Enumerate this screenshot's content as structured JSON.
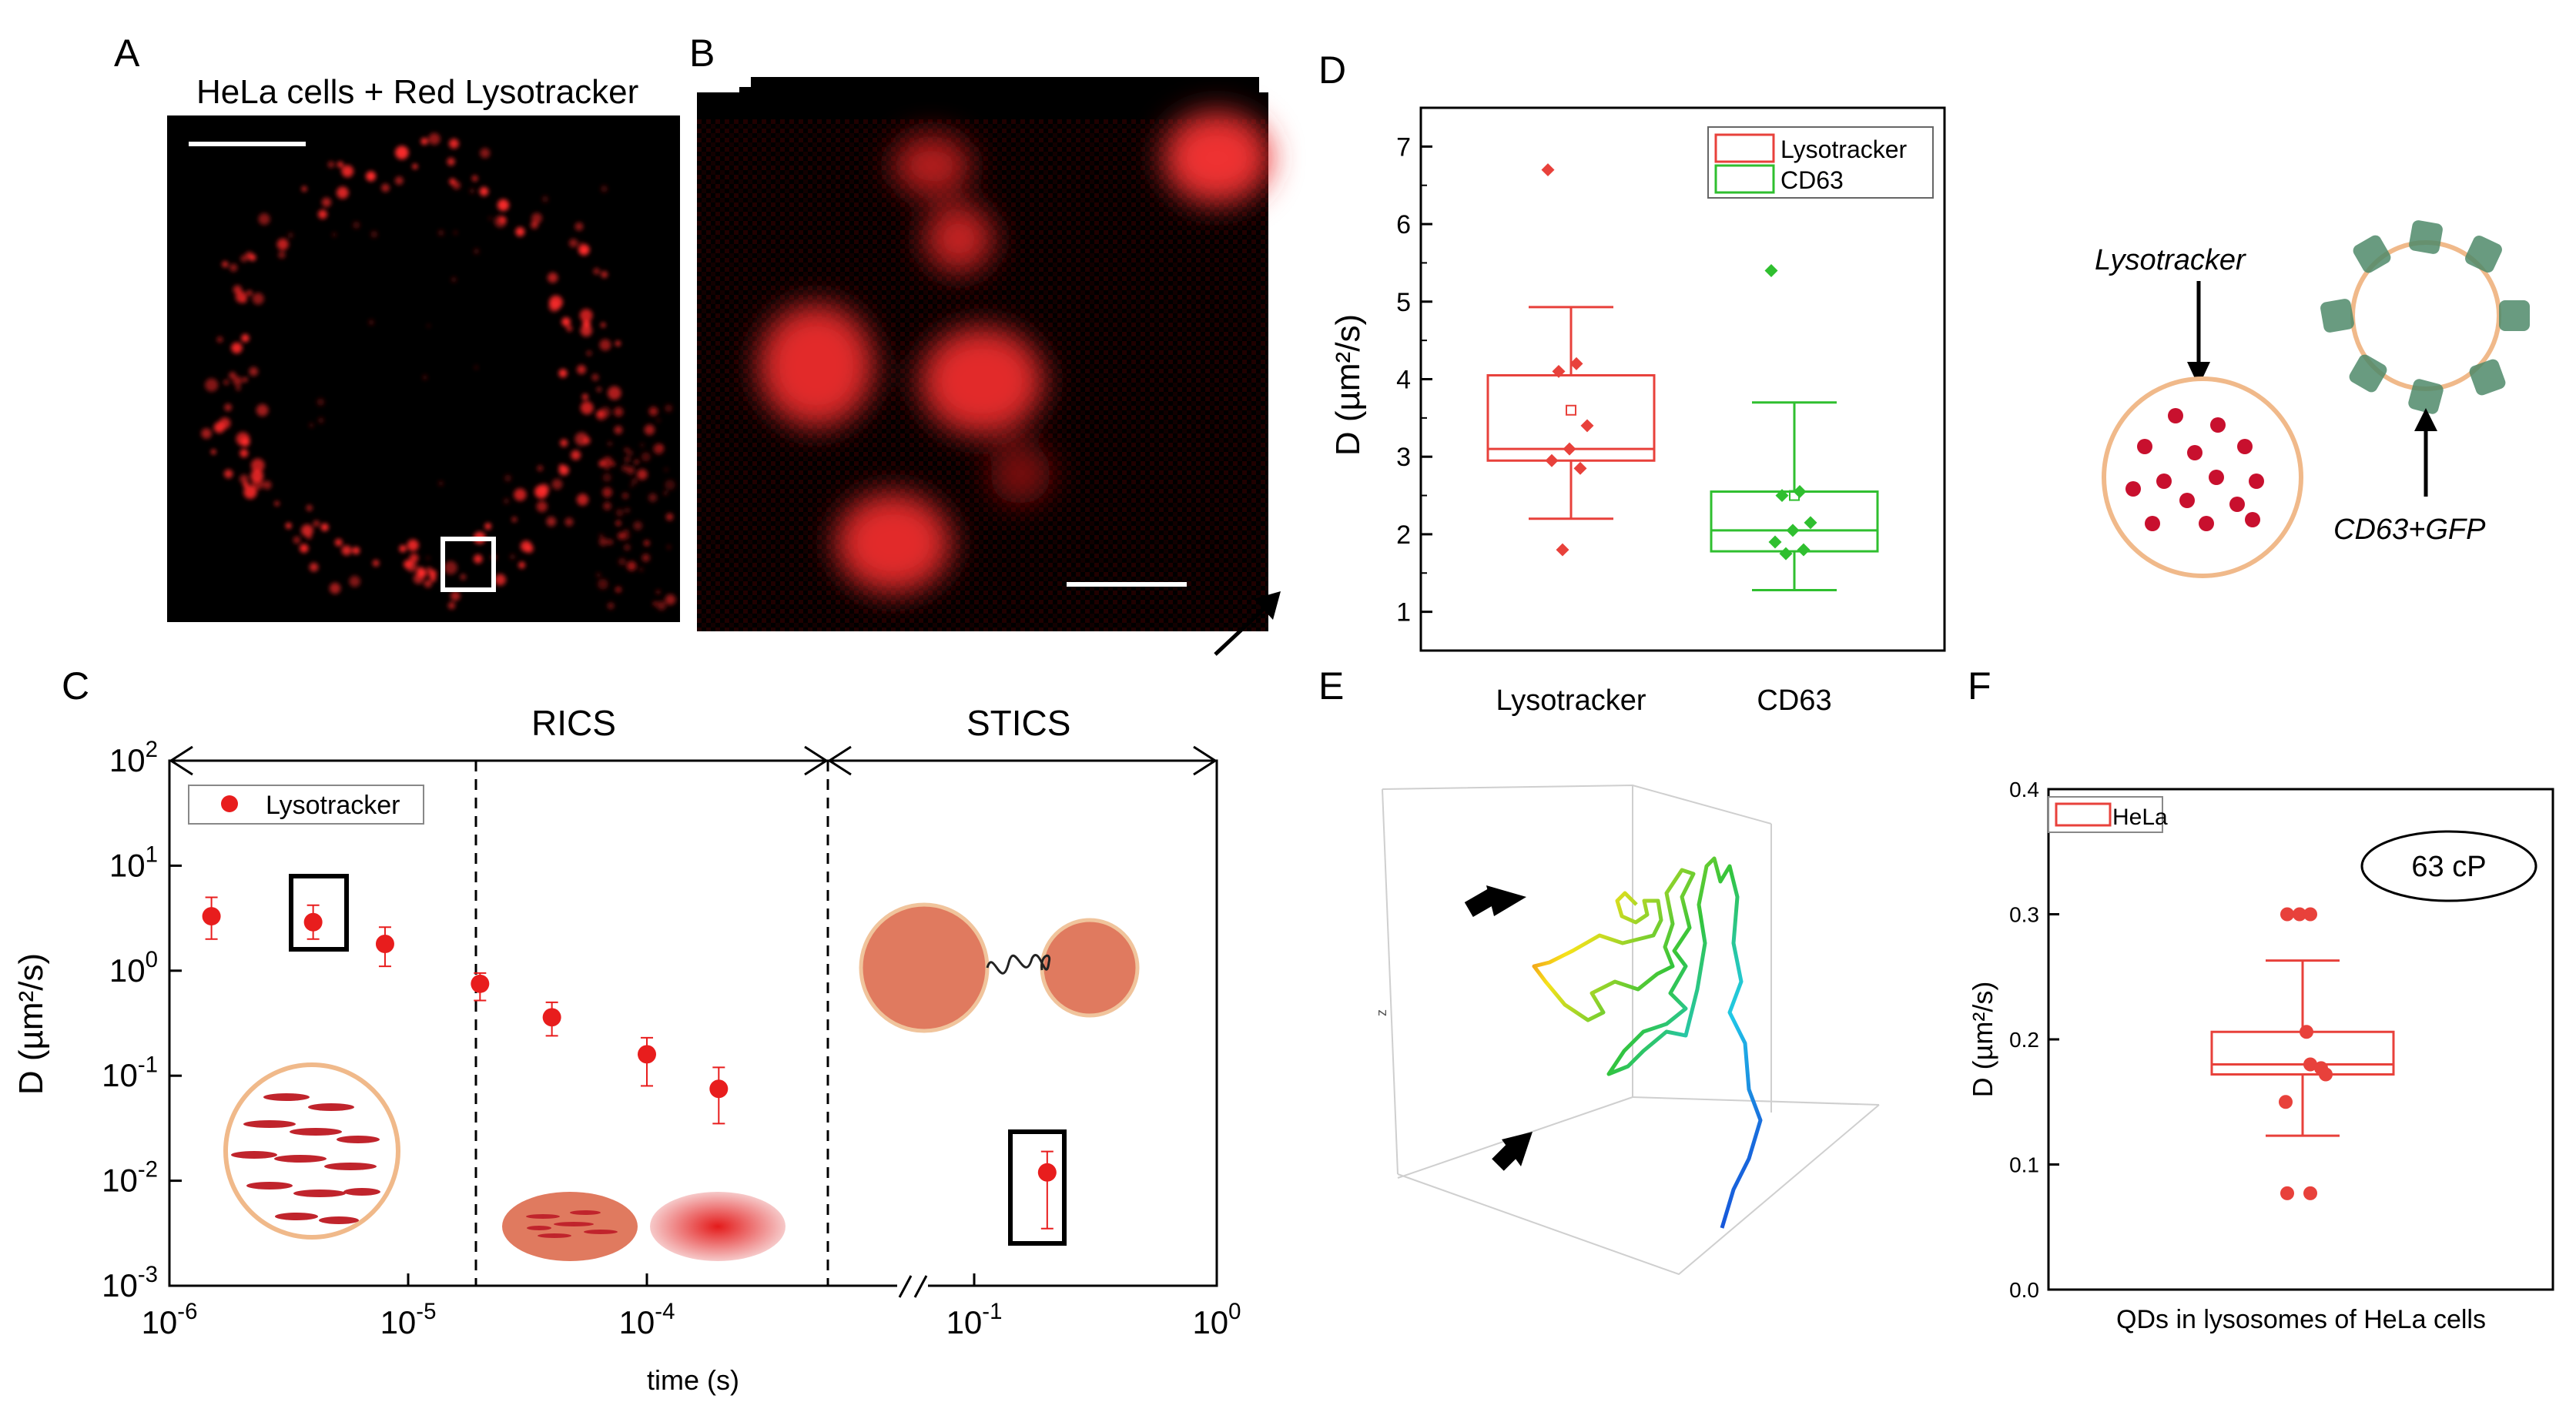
{
  "panels": {
    "A": {
      "letter": "A",
      "caption": "HeLa cells + Red Lysotracker"
    },
    "B": {
      "letter": "B"
    },
    "C": {
      "letter": "C",
      "sections": [
        "RICS",
        "STICS"
      ],
      "legend": "Lysotracker",
      "ylabel": "D (µm²/s)",
      "xlabel": "time (s)"
    },
    "D": {
      "letter": "D",
      "ylabel": "D (µm²/s)",
      "legend": [
        "Lysotracker",
        "CD63"
      ],
      "schematic": {
        "label_left": "Lysotracker",
        "label_right": "CD63+GFP"
      }
    },
    "E": {
      "letter": "E",
      "axis_label_z": "z"
    },
    "F": {
      "letter": "F",
      "legend": "HeLa",
      "annotation": "63 cP",
      "ylabel": "D (µm²/s)",
      "xlabel": "QDs in lysosomes of HeLa cells"
    }
  },
  "chart_data": [
    {
      "id": "C",
      "type": "scatter",
      "title": "",
      "xlabel": "time (s)",
      "ylabel": "D (µm²/s)",
      "yscale": "log",
      "ylim": [
        0.001,
        100
      ],
      "yticks": [
        "10^-3",
        "10^-2",
        "10^-1",
        "10^0",
        "10^1",
        "10^2"
      ],
      "xticks": [
        "10^-6",
        "10^-5",
        "10^-4",
        "10^-1",
        "10^0"
      ],
      "series": [
        {
          "name": "Lysotracker",
          "points": [
            {
              "x": 1.5e-06,
              "y": 3.3,
              "lo": 2.0,
              "hi": 5.0
            },
            {
              "x": 4e-06,
              "y": 2.9,
              "lo": 2.0,
              "hi": 4.2
            },
            {
              "x": 8e-06,
              "y": 1.8,
              "lo": 1.1,
              "hi": 2.6
            },
            {
              "x": 2e-05,
              "y": 0.75,
              "lo": 0.52,
              "hi": 0.95
            },
            {
              "x": 4e-05,
              "y": 0.36,
              "lo": 0.24,
              "hi": 0.5
            },
            {
              "x": 0.0001,
              "y": 0.16,
              "lo": 0.08,
              "hi": 0.23
            },
            {
              "x": 0.0002,
              "y": 0.075,
              "lo": 0.035,
              "hi": 0.12
            },
            {
              "x": 0.2,
              "y": 0.012,
              "lo": 0.0035,
              "hi": 0.019
            }
          ]
        }
      ]
    },
    {
      "id": "D",
      "type": "box",
      "xlabel": "",
      "ylabel": "D (µm²/s)",
      "ylim": [
        0.5,
        7.5
      ],
      "yticks": [
        1,
        2,
        3,
        4,
        5,
        6,
        7
      ],
      "categories": [
        "Lysotracker",
        "CD63"
      ],
      "series": [
        {
          "name": "Lysotracker",
          "color": "#e8413b",
          "whisker_low": 2.2,
          "q1": 2.95,
          "median": 3.1,
          "q3": 4.05,
          "whisker_high": 4.93,
          "mean": 3.6,
          "points": [
            6.7,
            4.2,
            4.1,
            3.4,
            3.1,
            2.95,
            2.85,
            1.8
          ]
        },
        {
          "name": "CD63",
          "color": "#2fbf2f",
          "whisker_low": 1.28,
          "q1": 1.78,
          "median": 2.05,
          "q3": 2.55,
          "whisker_high": 3.7,
          "mean": 2.5,
          "points": [
            5.4,
            2.55,
            2.5,
            2.15,
            2.05,
            1.9,
            1.8,
            1.75
          ]
        }
      ]
    },
    {
      "id": "F",
      "type": "box",
      "xlabel": "QDs in lysosomes of HeLa cells",
      "ylabel": "D (µm²/s)",
      "ylim": [
        0.0,
        0.4
      ],
      "yticks": [
        "0.0",
        "0.1",
        "0.2",
        "0.3",
        "0.4"
      ],
      "categories": [
        "QDs in lysosomes of HeLa cells"
      ],
      "series": [
        {
          "name": "HeLa",
          "color": "#e8413b",
          "whisker_low": 0.123,
          "q1": 0.172,
          "median": 0.18,
          "q3": 0.206,
          "whisker_high": 0.263,
          "points": [
            0.3,
            0.3,
            0.3,
            0.206,
            0.18,
            0.177,
            0.172,
            0.15,
            0.077,
            0.077
          ]
        }
      ]
    }
  ]
}
